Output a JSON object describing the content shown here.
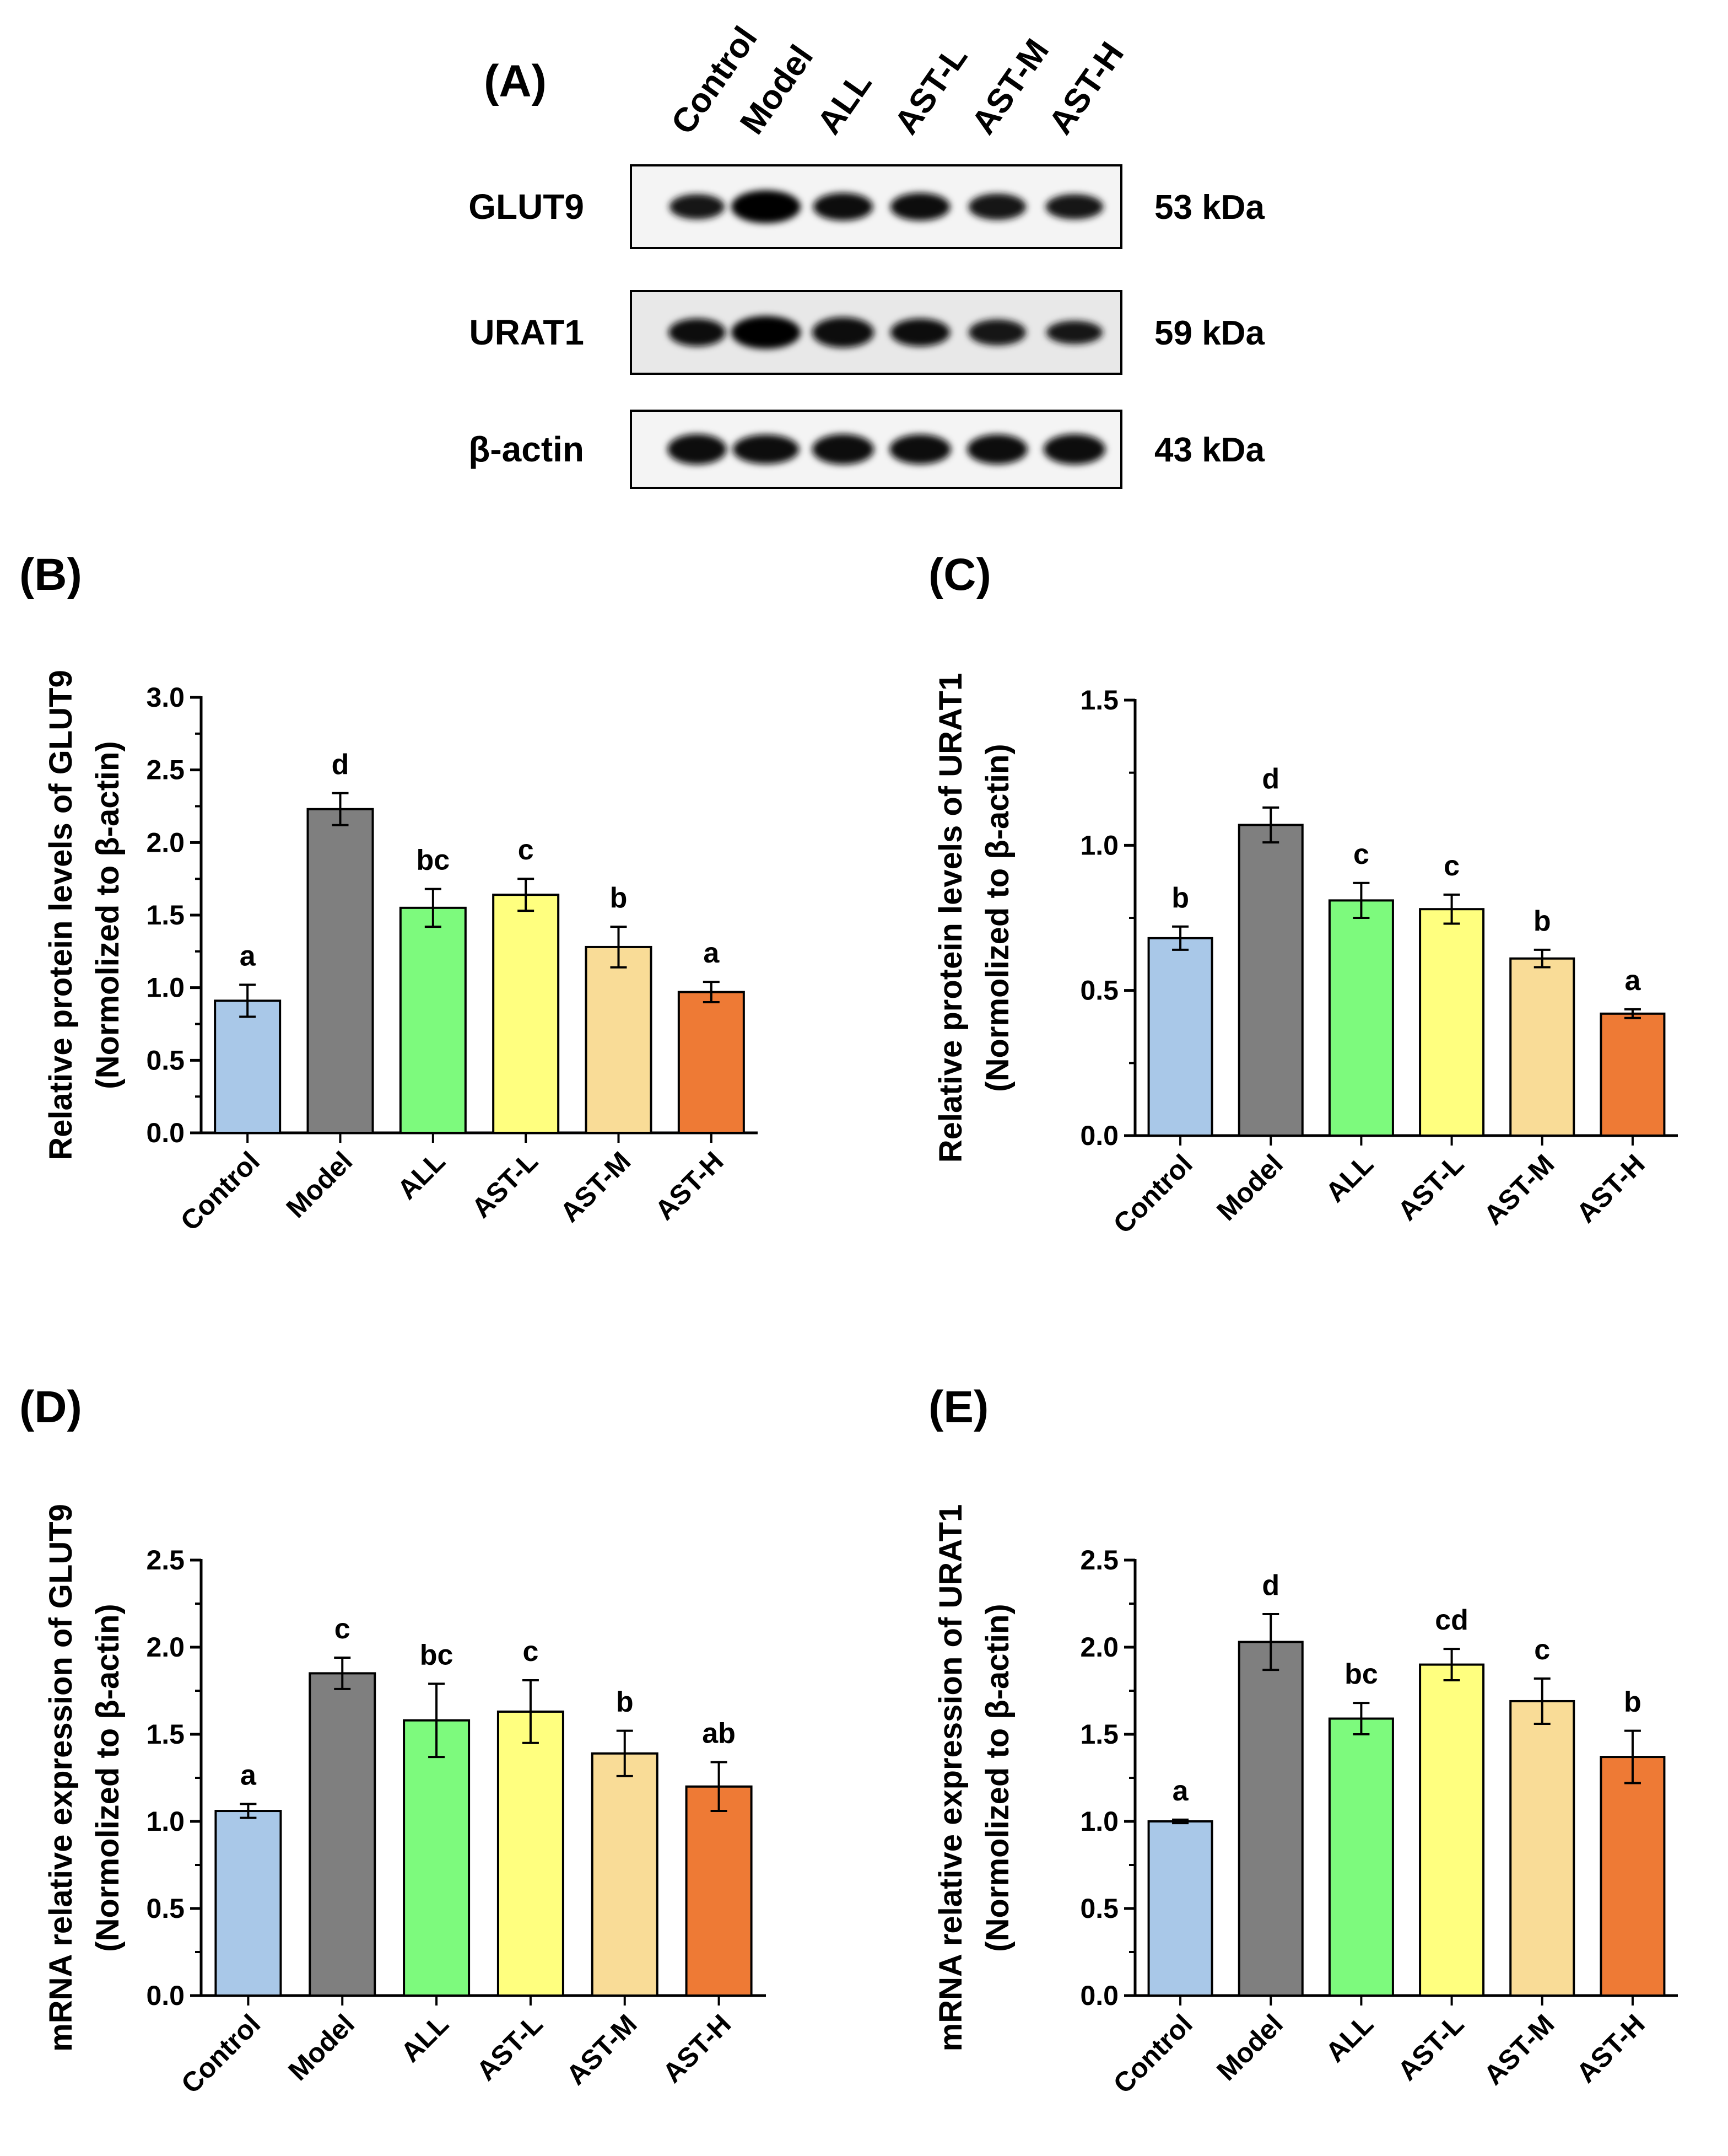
{
  "figure_panels": {
    "blot": {
      "letter": "(A)",
      "lanes": [
        "Control",
        "Model",
        "ALL",
        "AST-L",
        "AST-M",
        "AST-H"
      ],
      "rows": [
        {
          "protein": "GLUT9",
          "size": "53 kDa",
          "intensity": [
            0.55,
            1.0,
            0.7,
            0.7,
            0.62,
            0.55
          ]
        },
        {
          "protein": "URAT1",
          "size": "59 kDa",
          "intensity": [
            0.7,
            1.0,
            0.85,
            0.7,
            0.6,
            0.45
          ]
        },
        {
          "protein": "β-actin",
          "size": "43 kDa",
          "intensity": [
            0.85,
            0.8,
            0.85,
            0.82,
            0.82,
            0.85
          ]
        }
      ]
    }
  },
  "chart_data": [
    {
      "panel": "(B)",
      "type": "bar",
      "categories": [
        "Control",
        "Model",
        "ALL",
        "AST-L",
        "AST-M",
        "AST-H"
      ],
      "values": [
        0.91,
        2.23,
        1.55,
        1.64,
        1.28,
        0.97
      ],
      "errors": [
        0.11,
        0.11,
        0.13,
        0.11,
        0.14,
        0.07
      ],
      "letters": [
        "a",
        "d",
        "bc",
        "c",
        "b",
        "a"
      ],
      "ylabel": [
        "Relative protein levels of GLUT9",
        "(Normolized to β-actin)"
      ],
      "ylim": [
        0,
        3.0
      ],
      "yticks": [
        "0.0",
        "0.5",
        "1.0",
        "1.5",
        "2.0",
        "2.5",
        "3.0"
      ],
      "colors": [
        "#a9c8e8",
        "#7f7f7f",
        "#7dfa7d",
        "#ffff7f",
        "#f9dc97",
        "#ee7a35"
      ]
    },
    {
      "panel": "(C)",
      "type": "bar",
      "categories": [
        "Control",
        "Model",
        "ALL",
        "AST-L",
        "AST-M",
        "AST-H"
      ],
      "values": [
        0.68,
        1.07,
        0.81,
        0.78,
        0.61,
        0.42
      ],
      "errors": [
        0.04,
        0.06,
        0.06,
        0.05,
        0.03,
        0.015
      ],
      "letters": [
        "b",
        "d",
        "c",
        "c",
        "b",
        "a"
      ],
      "ylabel": [
        "Relative protein levels of URAT1",
        "(Normolized to β-actin)"
      ],
      "ylim": [
        0,
        1.5
      ],
      "yticks": [
        "0.0",
        "0.5",
        "1.0",
        "1.5"
      ],
      "colors": [
        "#a9c8e8",
        "#7f7f7f",
        "#7dfa7d",
        "#ffff7f",
        "#f9dc97",
        "#ee7a35"
      ]
    },
    {
      "panel": "(D)",
      "type": "bar",
      "categories": [
        "Control",
        "Model",
        "ALL",
        "AST-L",
        "AST-M",
        "AST-H"
      ],
      "values": [
        1.06,
        1.85,
        1.58,
        1.63,
        1.39,
        1.2
      ],
      "errors": [
        0.04,
        0.09,
        0.21,
        0.18,
        0.13,
        0.14
      ],
      "letters": [
        "a",
        "c",
        "bc",
        "c",
        "b",
        "ab"
      ],
      "ylabel": [
        "mRNA relative expression of GLUT9",
        "(Normolized to β-actin)"
      ],
      "ylim": [
        0,
        2.5
      ],
      "yticks": [
        "0.0",
        "0.5",
        "1.0",
        "1.5",
        "2.0",
        "2.5"
      ],
      "colors": [
        "#a9c8e8",
        "#7f7f7f",
        "#7dfa7d",
        "#ffff7f",
        "#f9dc97",
        "#ee7a35"
      ]
    },
    {
      "panel": "(E)",
      "type": "bar",
      "categories": [
        "Control",
        "Model",
        "ALL",
        "AST-L",
        "AST-M",
        "AST-H"
      ],
      "values": [
        1.0,
        2.03,
        1.59,
        1.9,
        1.69,
        1.37
      ],
      "errors": [
        0.01,
        0.16,
        0.09,
        0.09,
        0.13,
        0.15
      ],
      "letters": [
        "a",
        "d",
        "bc",
        "cd",
        "c",
        "b"
      ],
      "ylabel": [
        "mRNA relative expression of URAT1",
        "(Normolized to β-actin)"
      ],
      "ylim": [
        0,
        2.5
      ],
      "yticks": [
        "0.0",
        "0.5",
        "1.0",
        "1.5",
        "2.0",
        "2.5"
      ],
      "colors": [
        "#a9c8e8",
        "#7f7f7f",
        "#7dfa7d",
        "#ffff7f",
        "#f9dc97",
        "#ee7a35"
      ]
    }
  ]
}
